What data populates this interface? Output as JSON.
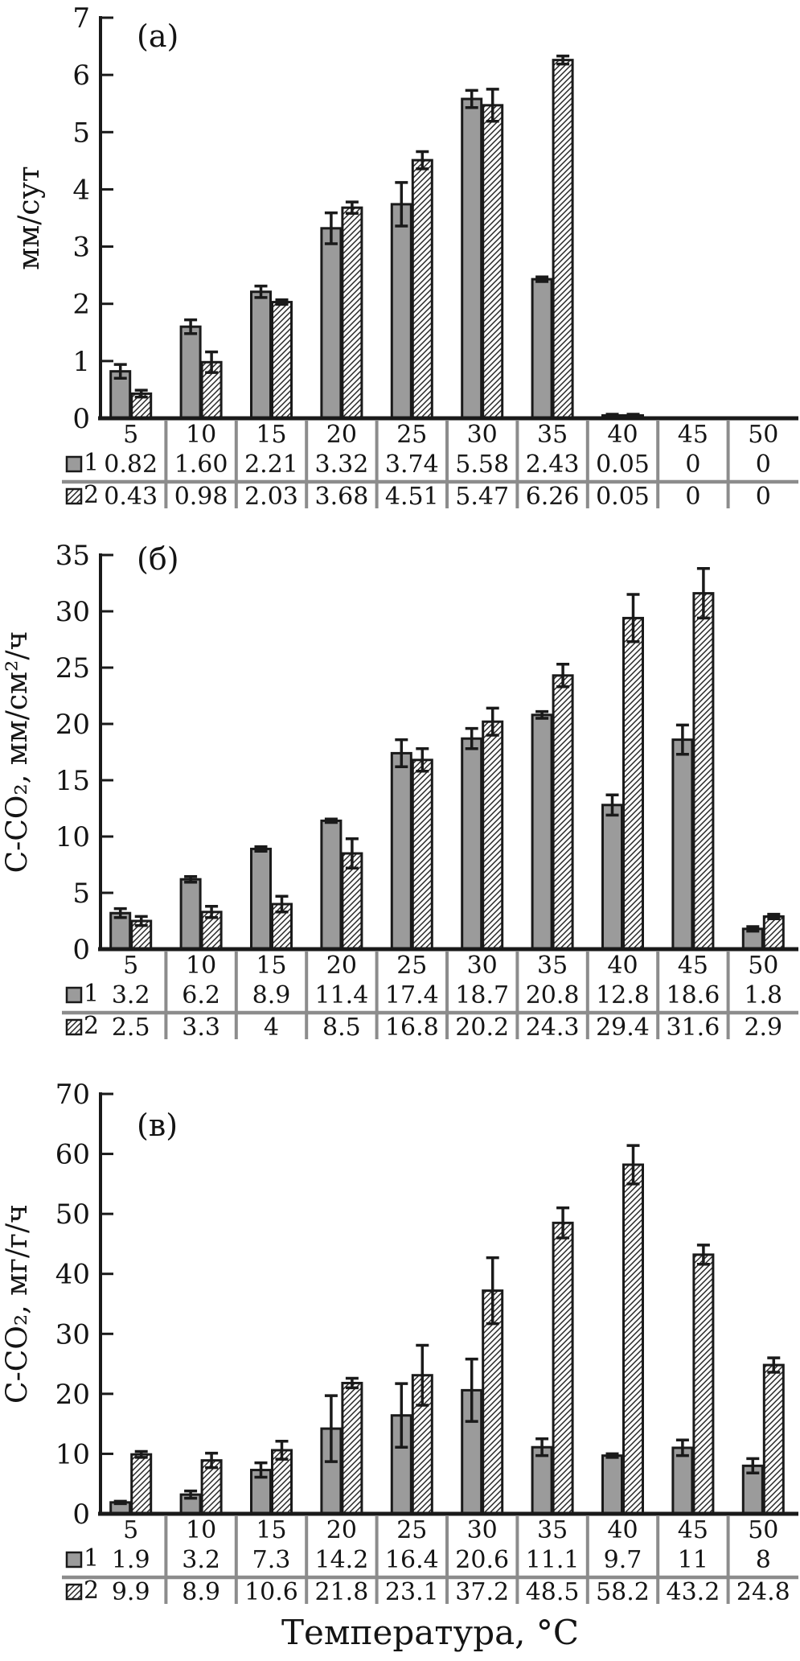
{
  "figure": {
    "xlabel": "Температура, °C",
    "colors": {
      "background": "#ffffff",
      "bar_fill": "#9b9b9b",
      "bar_stroke": "#1a1a1a",
      "hatch_line": "#262626",
      "axis": "#1a1a1a",
      "divider": "#8c8c8c",
      "text": "#141414"
    }
  },
  "chart_data": [
    {
      "type": "bar",
      "panel": "(а)",
      "ylabel": "мм/сут",
      "ylim": [
        0,
        7
      ],
      "yticks": [
        0,
        1,
        2,
        3,
        4,
        5,
        6,
        7
      ],
      "grid": false,
      "legend_position": "table-left",
      "categories": [
        5,
        10,
        15,
        20,
        25,
        30,
        35,
        40,
        45,
        50
      ],
      "series": [
        {
          "name": "1",
          "style": "solid-gray",
          "values": [
            0.82,
            1.6,
            2.21,
            3.32,
            3.74,
            5.58,
            2.43,
            0.05,
            0,
            0
          ],
          "values_text": [
            "0.82",
            "1.60",
            "2.21",
            "3.32",
            "3.74",
            "5.58",
            "2.43",
            "0.05",
            "0",
            "0"
          ],
          "errors": [
            0.12,
            0.12,
            0.1,
            0.27,
            0.38,
            0.15,
            0.04,
            0.02,
            0,
            0
          ]
        },
        {
          "name": "2",
          "style": "hatched",
          "values": [
            0.43,
            0.98,
            2.03,
            3.68,
            4.51,
            5.47,
            6.26,
            0.05,
            0,
            0
          ],
          "values_text": [
            "0.43",
            "0.98",
            "2.03",
            "3.68",
            "4.51",
            "5.47",
            "6.26",
            "0.05",
            "0",
            "0"
          ],
          "errors": [
            0.06,
            0.18,
            0.04,
            0.1,
            0.15,
            0.28,
            0.07,
            0.02,
            0,
            0
          ]
        }
      ]
    },
    {
      "type": "bar",
      "panel": "(б)",
      "ylabel": "С-СО₂, мм/см²/ч",
      "ylim": [
        0,
        35
      ],
      "yticks": [
        0,
        5,
        10,
        15,
        20,
        25,
        30,
        35
      ],
      "grid": false,
      "legend_position": "table-left",
      "categories": [
        5,
        10,
        15,
        20,
        25,
        30,
        35,
        40,
        45,
        50
      ],
      "series": [
        {
          "name": "1",
          "style": "solid-gray",
          "values": [
            3.2,
            6.2,
            8.9,
            11.4,
            17.4,
            18.7,
            20.8,
            12.8,
            18.6,
            1.8
          ],
          "values_text": [
            "3.2",
            "6.2",
            "8.9",
            "11.4",
            "17.4",
            "18.7",
            "20.8",
            "12.8",
            "18.6",
            "1.8"
          ],
          "errors": [
            0.4,
            0.25,
            0.2,
            0.15,
            1.2,
            0.9,
            0.3,
            0.9,
            1.3,
            0.2
          ]
        },
        {
          "name": "2",
          "style": "hatched",
          "values": [
            2.5,
            3.3,
            4,
            8.5,
            16.8,
            20.2,
            24.3,
            29.4,
            31.6,
            2.9
          ],
          "values_text": [
            "2.5",
            "3.3",
            "4",
            "8.5",
            "16.8",
            "20.2",
            "24.3",
            "29.4",
            "31.6",
            "2.9"
          ],
          "errors": [
            0.4,
            0.5,
            0.7,
            1.3,
            1.0,
            1.2,
            1.0,
            2.1,
            2.2,
            0.2
          ]
        }
      ]
    },
    {
      "type": "bar",
      "panel": "(в)",
      "ylabel": "С-СО₂, мг/г/ч",
      "ylim": [
        0,
        70
      ],
      "yticks": [
        0,
        10,
        20,
        30,
        40,
        50,
        60,
        70
      ],
      "grid": false,
      "legend_position": "table-left",
      "categories": [
        5,
        10,
        15,
        20,
        25,
        30,
        35,
        40,
        45,
        50
      ],
      "series": [
        {
          "name": "1",
          "style": "solid-gray",
          "values": [
            1.9,
            3.2,
            7.3,
            14.2,
            16.4,
            20.6,
            11.1,
            9.7,
            11,
            8
          ],
          "values_text": [
            "1.9",
            "3.2",
            "7.3",
            "14.2",
            "16.4",
            "20.6",
            "11.1",
            "9.7",
            "11",
            "8"
          ],
          "errors": [
            0.2,
            0.6,
            1.2,
            5.5,
            5.3,
            5.2,
            1.4,
            0.3,
            1.3,
            1.2
          ]
        },
        {
          "name": "2",
          "style": "hatched",
          "values": [
            9.9,
            8.9,
            10.6,
            21.8,
            23.1,
            37.2,
            48.5,
            58.2,
            43.2,
            24.8
          ],
          "values_text": [
            "9.9",
            "8.9",
            "10.6",
            "21.8",
            "23.1",
            "37.2",
            "48.5",
            "58.2",
            "43.2",
            "24.8"
          ],
          "errors": [
            0.5,
            1.2,
            1.5,
            0.8,
            5.0,
            5.5,
            2.5,
            3.2,
            1.6,
            1.2
          ]
        }
      ]
    }
  ]
}
